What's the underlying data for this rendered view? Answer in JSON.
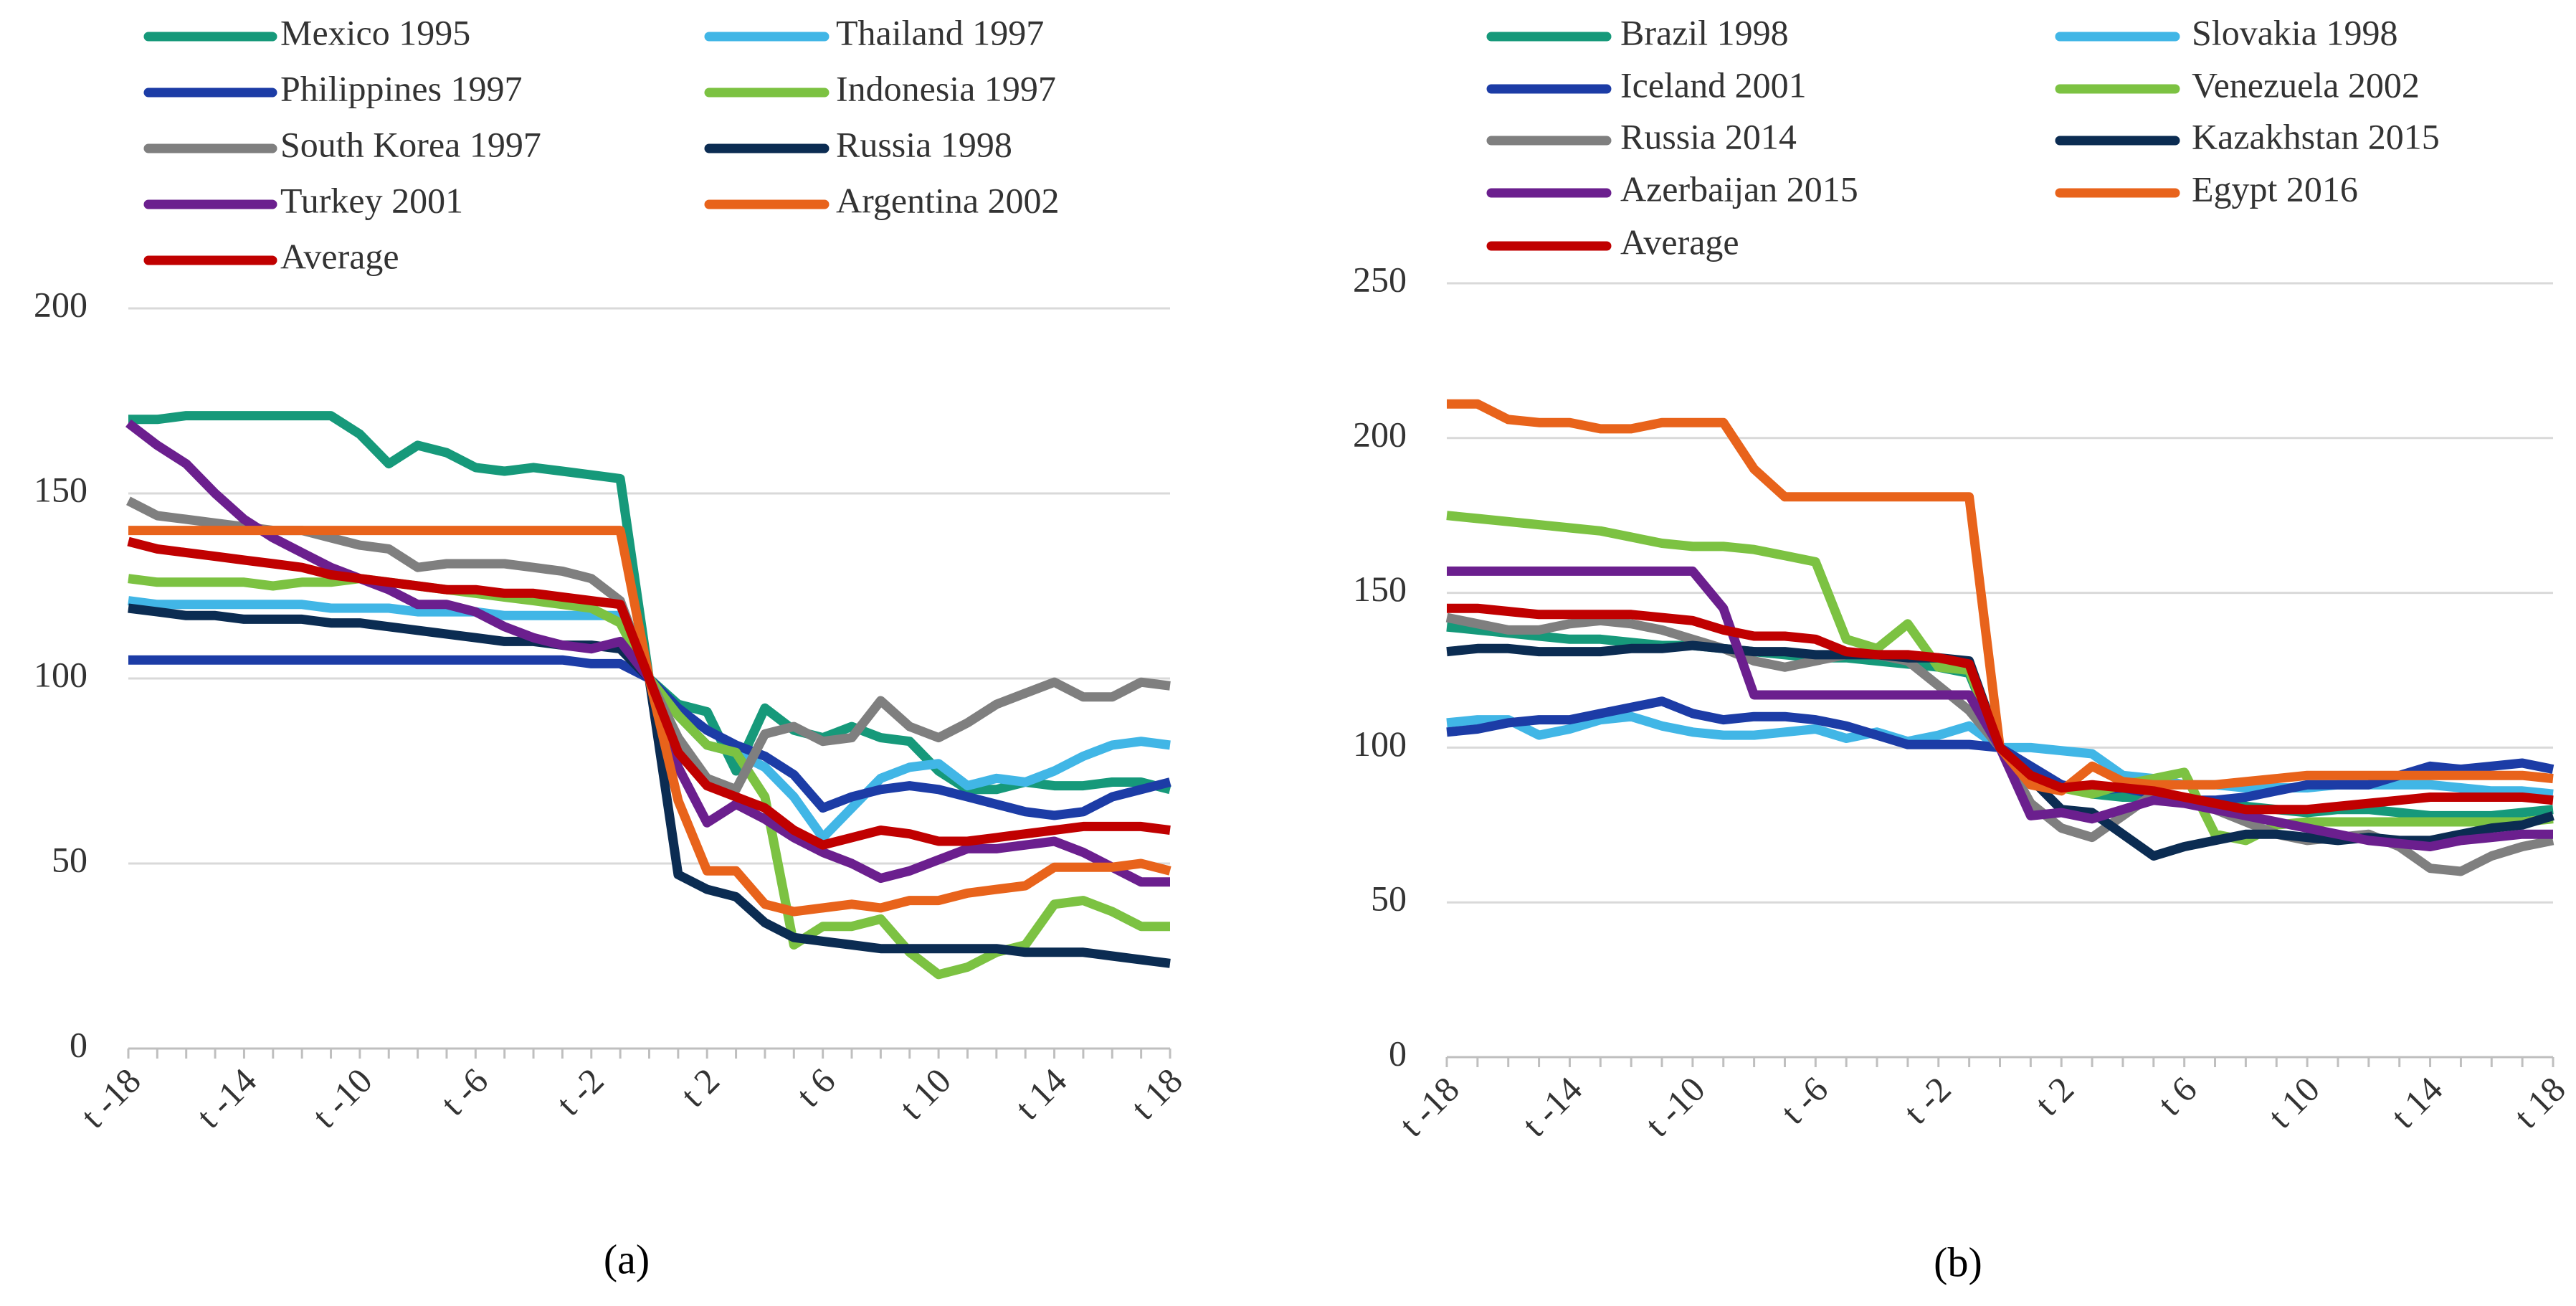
{
  "chart_data": [
    {
      "type": "line",
      "caption": "(a)",
      "categories": [
        "t -18",
        null,
        null,
        null,
        "t -14",
        null,
        null,
        null,
        "t -10",
        null,
        null,
        null,
        "t -6",
        null,
        null,
        null,
        "t -2",
        null,
        null,
        null,
        "t 2",
        null,
        null,
        null,
        "t 6",
        null,
        null,
        null,
        "t 10",
        null,
        null,
        null,
        "t 14",
        null,
        null,
        null,
        "t 18"
      ],
      "ylim": [
        0,
        200
      ],
      "yticks": [
        0,
        50,
        100,
        150,
        200
      ],
      "grid": true,
      "legend": "top",
      "series": [
        {
          "name": "Mexico 1995",
          "color": "#16997a",
          "values": [
            170,
            170,
            171,
            171,
            171,
            171,
            171,
            171,
            166,
            158,
            163,
            161,
            157,
            156,
            157,
            156,
            155,
            154,
            100,
            93,
            91,
            75,
            92,
            86,
            84,
            87,
            84,
            83,
            75,
            70,
            70,
            72,
            71,
            71,
            72,
            72,
            70
          ]
        },
        {
          "name": "Thailand 1997",
          "color": "#41b6e6",
          "values": [
            121,
            120,
            120,
            120,
            120,
            120,
            120,
            119,
            119,
            119,
            118,
            118,
            118,
            117,
            117,
            117,
            117,
            117,
            100,
            90,
            82,
            80,
            76,
            68,
            57,
            65,
            73,
            76,
            77,
            71,
            73,
            72,
            75,
            79,
            82,
            83,
            82
          ]
        },
        {
          "name": "Philippines 1997",
          "color": "#1c3ca6",
          "values": [
            105,
            105,
            105,
            105,
            105,
            105,
            105,
            105,
            105,
            105,
            105,
            105,
            105,
            105,
            105,
            105,
            104,
            104,
            100,
            92,
            86,
            82,
            79,
            74,
            65,
            68,
            70,
            71,
            70,
            68,
            66,
            64,
            63,
            64,
            68,
            70,
            72
          ]
        },
        {
          "name": "Indonesia 1997",
          "color": "#7cc242",
          "values": [
            127,
            126,
            126,
            126,
            126,
            125,
            126,
            126,
            127,
            126,
            125,
            124,
            123,
            122,
            121,
            120,
            119,
            115,
            100,
            90,
            82,
            80,
            68,
            28,
            33,
            33,
            35,
            26,
            20,
            22,
            26,
            28,
            39,
            40,
            37,
            33,
            33
          ]
        },
        {
          "name": "South Korea 1997",
          "color": "#7f7f7f",
          "values": [
            148,
            144,
            143,
            142,
            141,
            140,
            140,
            138,
            136,
            135,
            130,
            131,
            131,
            131,
            130,
            129,
            127,
            121,
            100,
            84,
            73,
            70,
            85,
            87,
            83,
            84,
            94,
            87,
            84,
            88,
            93,
            96,
            99,
            95,
            95,
            99,
            98
          ]
        },
        {
          "name": "Russia 1998",
          "color": "#0b2c52",
          "values": [
            119,
            118,
            117,
            117,
            116,
            116,
            116,
            115,
            115,
            114,
            113,
            112,
            111,
            110,
            110,
            109,
            109,
            108,
            100,
            47,
            43,
            41,
            34,
            30,
            29,
            28,
            27,
            27,
            27,
            27,
            27,
            26,
            26,
            26,
            25,
            24,
            23
          ]
        },
        {
          "name": "Turkey 2001",
          "color": "#6b1f8e",
          "values": [
            169,
            163,
            158,
            150,
            143,
            138,
            134,
            130,
            127,
            124,
            120,
            120,
            118,
            114,
            111,
            109,
            108,
            110,
            100,
            76,
            61,
            66,
            62,
            57,
            53,
            50,
            46,
            48,
            51,
            54,
            54,
            55,
            56,
            53,
            49,
            45,
            45
          ]
        },
        {
          "name": "Argentina 2002",
          "color": "#e8631b",
          "values": [
            140,
            140,
            140,
            140,
            140,
            140,
            140,
            140,
            140,
            140,
            140,
            140,
            140,
            140,
            140,
            140,
            140,
            140,
            100,
            67,
            48,
            48,
            39,
            37,
            38,
            39,
            38,
            40,
            40,
            42,
            43,
            44,
            49,
            49,
            49,
            50,
            48
          ]
        },
        {
          "name": "Average",
          "color": "#c00000",
          "values": [
            137,
            135,
            134,
            133,
            132,
            131,
            130,
            128,
            127,
            126,
            125,
            124,
            124,
            123,
            123,
            122,
            121,
            120,
            100,
            80,
            71,
            68,
            65,
            59,
            55,
            57,
            59,
            58,
            56,
            56,
            57,
            58,
            59,
            60,
            60,
            60,
            59
          ]
        }
      ]
    },
    {
      "type": "line",
      "caption": "(b)",
      "categories": [
        "t -18",
        null,
        null,
        null,
        "t -14",
        null,
        null,
        null,
        "t -10",
        null,
        null,
        null,
        "t -6",
        null,
        null,
        null,
        "t -2",
        null,
        null,
        null,
        "t 2",
        null,
        null,
        null,
        "t 6",
        null,
        null,
        null,
        "t 10",
        null,
        null,
        null,
        "t 14",
        null,
        null,
        null,
        "t 18"
      ],
      "ylim": [
        0,
        250
      ],
      "yticks": [
        0,
        50,
        100,
        150,
        200,
        250
      ],
      "grid": true,
      "legend": "top",
      "series": [
        {
          "name": "Brazil 1998",
          "color": "#16997a",
          "values": [
            139,
            138,
            137,
            136,
            135,
            135,
            134,
            133,
            133,
            132,
            131,
            130,
            129,
            129,
            128,
            127,
            126,
            124,
            100,
            92,
            88,
            85,
            84,
            84,
            83,
            82,
            81,
            80,
            79,
            80,
            80,
            79,
            78,
            78,
            78,
            79,
            80
          ]
        },
        {
          "name": "Slovakia 1998",
          "color": "#41b6e6",
          "values": [
            108,
            109,
            109,
            104,
            106,
            109,
            110,
            107,
            105,
            104,
            104,
            105,
            106,
            103,
            105,
            102,
            104,
            107,
            100,
            100,
            99,
            98,
            91,
            90,
            88,
            88,
            87,
            87,
            87,
            88,
            88,
            88,
            88,
            87,
            86,
            86,
            85
          ]
        },
        {
          "name": "Iceland 2001",
          "color": "#1c3ca6",
          "values": [
            105,
            106,
            108,
            109,
            109,
            111,
            113,
            115,
            111,
            109,
            110,
            110,
            109,
            107,
            104,
            101,
            101,
            101,
            100,
            94,
            88,
            86,
            87,
            85,
            83,
            83,
            84,
            86,
            88,
            88,
            88,
            91,
            94,
            93,
            94,
            95,
            93
          ]
        },
        {
          "name": "Venezuela 2002",
          "color": "#7cc242",
          "values": [
            175,
            174,
            173,
            172,
            171,
            170,
            168,
            166,
            165,
            165,
            164,
            162,
            160,
            135,
            132,
            140,
            126,
            125,
            100,
            90,
            87,
            85,
            88,
            90,
            92,
            72,
            70,
            75,
            76,
            76,
            76,
            76,
            76,
            76,
            76,
            76,
            77
          ]
        },
        {
          "name": "Russia 2014",
          "color": "#7f7f7f",
          "values": [
            142,
            140,
            138,
            138,
            140,
            141,
            140,
            138,
            135,
            132,
            128,
            126,
            128,
            130,
            130,
            128,
            120,
            112,
            100,
            82,
            74,
            71,
            78,
            85,
            83,
            80,
            76,
            72,
            70,
            71,
            72,
            68,
            61,
            60,
            65,
            68,
            70
          ]
        },
        {
          "name": "Kazakhstan 2015",
          "color": "#0b2c52",
          "values": [
            131,
            132,
            132,
            131,
            131,
            131,
            132,
            132,
            133,
            132,
            131,
            131,
            130,
            130,
            130,
            129,
            129,
            128,
            100,
            90,
            80,
            79,
            72,
            65,
            68,
            70,
            72,
            72,
            71,
            70,
            71,
            70,
            70,
            72,
            74,
            75,
            78
          ]
        },
        {
          "name": "Azerbaijan 2015",
          "color": "#6b1f8e",
          "values": [
            157,
            157,
            157,
            157,
            157,
            157,
            157,
            157,
            157,
            145,
            117,
            117,
            117,
            117,
            117,
            117,
            117,
            117,
            100,
            78,
            79,
            77,
            80,
            83,
            82,
            80,
            78,
            76,
            74,
            72,
            70,
            69,
            68,
            70,
            71,
            72,
            72
          ]
        },
        {
          "name": "Egypt 2016",
          "color": "#e8631b",
          "values": [
            211,
            211,
            206,
            205,
            205,
            203,
            203,
            205,
            205,
            205,
            190,
            181,
            181,
            181,
            181,
            181,
            181,
            181,
            100,
            88,
            86,
            94,
            89,
            88,
            88,
            88,
            89,
            90,
            91,
            91,
            91,
            91,
            91,
            91,
            91,
            91,
            90
          ]
        },
        {
          "name": "Average",
          "color": "#c00000",
          "values": [
            145,
            145,
            144,
            143,
            143,
            143,
            143,
            142,
            141,
            138,
            136,
            136,
            135,
            131,
            130,
            130,
            129,
            127,
            100,
            91,
            87,
            88,
            87,
            86,
            84,
            82,
            80,
            80,
            80,
            81,
            82,
            83,
            84,
            84,
            84,
            84,
            83
          ]
        }
      ]
    }
  ]
}
